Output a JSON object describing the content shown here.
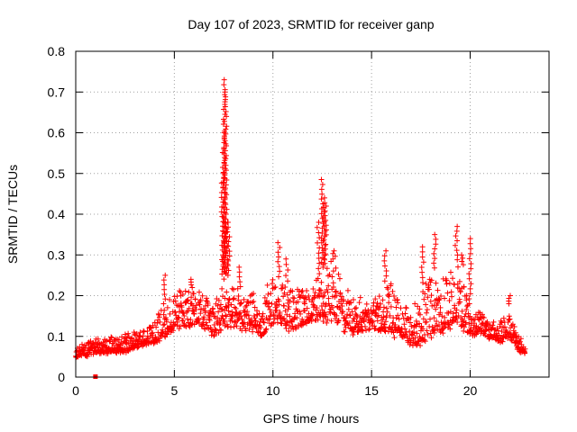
{
  "chart_data": {
    "type": "scatter",
    "title": "Day 107 of 2023, SRMTID for receiver ganp",
    "xlabel": "GPS time / hours",
    "ylabel": "SRMTID / TECUs",
    "xlim": [
      0,
      24
    ],
    "ylim": [
      0,
      0.8
    ],
    "x_ticks": [
      0,
      5,
      10,
      15,
      20
    ],
    "x_tick_labels": [
      "0",
      "5",
      "10",
      "15",
      "20"
    ],
    "y_ticks": [
      0,
      0.1,
      0.2,
      0.3,
      0.4,
      0.5,
      0.6,
      0.7,
      0.8
    ],
    "y_tick_labels": [
      "0",
      "0.1",
      "0.2",
      "0.3",
      "0.4",
      "0.5",
      "0.6",
      "0.7",
      "0.8"
    ],
    "grid": true,
    "marker": "+",
    "point_color": "#ff0000",
    "series": [
      {
        "name": "SRMTID",
        "envelope": {
          "x": [
            0,
            0.5,
            1,
            1.5,
            2,
            2.5,
            3,
            3.5,
            4,
            4.5,
            5,
            5.5,
            6,
            6.5,
            7,
            7.5,
            8,
            8.5,
            9,
            9.5,
            10,
            10.5,
            11,
            11.5,
            12,
            12.5,
            13,
            13.5,
            14,
            14.5,
            15,
            15.5,
            16,
            16.5,
            17,
            17.5,
            18,
            18.5,
            19,
            19.5,
            20,
            20.5,
            21,
            21.5,
            22,
            22.5,
            22.8
          ],
          "low": [
            0.04,
            0.04,
            0.05,
            0.05,
            0.05,
            0.05,
            0.06,
            0.07,
            0.07,
            0.08,
            0.09,
            0.1,
            0.11,
            0.1,
            0.08,
            0.09,
            0.1,
            0.09,
            0.09,
            0.08,
            0.1,
            0.1,
            0.08,
            0.1,
            0.12,
            0.11,
            0.1,
            0.09,
            0.08,
            0.09,
            0.1,
            0.09,
            0.07,
            0.07,
            0.06,
            0.04,
            0.06,
            0.08,
            0.08,
            0.08,
            0.08,
            0.1,
            0.08,
            0.07,
            0.08,
            0.05,
            0.05
          ],
          "high": [
            0.08,
            0.09,
            0.1,
            0.1,
            0.1,
            0.11,
            0.12,
            0.12,
            0.14,
            0.18,
            0.24,
            0.22,
            0.22,
            0.21,
            0.19,
            0.26,
            0.24,
            0.21,
            0.22,
            0.19,
            0.29,
            0.24,
            0.23,
            0.22,
            0.23,
            0.27,
            0.3,
            0.25,
            0.21,
            0.2,
            0.19,
            0.22,
            0.26,
            0.2,
            0.17,
            0.22,
            0.28,
            0.25,
            0.27,
            0.3,
            0.18,
            0.16,
            0.15,
            0.14,
            0.18,
            0.1,
            0.09
          ]
        },
        "spikes": [
          {
            "x": 4.5,
            "y": 0.25
          },
          {
            "x": 5.9,
            "y": 0.24
          },
          {
            "x": 7.45,
            "y": 0.5
          },
          {
            "x": 7.5,
            "y": 0.6
          },
          {
            "x": 7.55,
            "y": 0.73
          },
          {
            "x": 7.6,
            "y": 0.7
          },
          {
            "x": 7.65,
            "y": 0.38
          },
          {
            "x": 7.75,
            "y": 0.38
          },
          {
            "x": 8.3,
            "y": 0.27
          },
          {
            "x": 10.3,
            "y": 0.33
          },
          {
            "x": 10.7,
            "y": 0.29
          },
          {
            "x": 12.3,
            "y": 0.38
          },
          {
            "x": 12.5,
            "y": 0.485
          },
          {
            "x": 12.6,
            "y": 0.44
          },
          {
            "x": 12.65,
            "y": 0.42
          },
          {
            "x": 13.1,
            "y": 0.31
          },
          {
            "x": 15.7,
            "y": 0.31
          },
          {
            "x": 17.6,
            "y": 0.32
          },
          {
            "x": 18.2,
            "y": 0.35
          },
          {
            "x": 19.3,
            "y": 0.37
          },
          {
            "x": 19.6,
            "y": 0.3
          },
          {
            "x": 20.0,
            "y": 0.34
          },
          {
            "x": 22.0,
            "y": 0.2
          }
        ]
      }
    ],
    "outlier_marker": {
      "x": 1.0,
      "y": 0.0,
      "marker": "square"
    }
  }
}
